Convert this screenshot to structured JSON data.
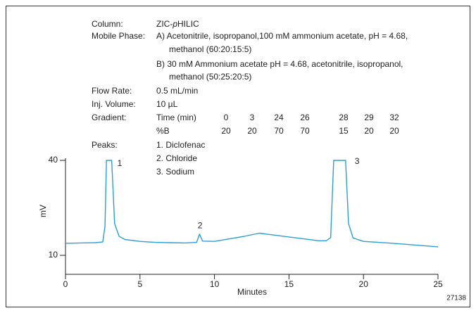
{
  "info": {
    "column": {
      "label": "Column:",
      "value_parts": [
        "ZIC-",
        "p",
        "HILIC"
      ]
    },
    "mobile_phase": {
      "label": "Mobile Phase:",
      "lines": [
        "A) Acetonitrile, isopropanol,100 mM ammonium acetate, pH = 4.68,",
        "methanol (60:20:15:5)",
        "B) 30 mM Ammonium acetate pH = 4.68, acetonitrile, isopropanol,",
        "methanol (50:25:20:5)"
      ]
    },
    "flow_rate": {
      "label": "Flow Rate:",
      "value": "0.5 mL/min"
    },
    "inj_volume": {
      "label": "Inj. Volume:",
      "value": "10 µL"
    },
    "gradient": {
      "label": "Gradient:",
      "time_label": "Time (min)",
      "times": [
        0,
        3,
        24,
        26,
        28,
        29,
        32
      ],
      "b_label": "%B",
      "b": [
        20,
        20,
        70,
        70,
        15,
        20,
        20
      ]
    },
    "peaks": {
      "label": "Peaks:",
      "items": [
        "1. Diclofenac",
        "2. Chloride",
        "3. Sodium"
      ]
    },
    "figure_id": "27138"
  },
  "chart_data": {
    "type": "line",
    "x_label": "Minutes",
    "y_label": "mV",
    "x": [
      0,
      1,
      2,
      2.5,
      2.65,
      2.75,
      3.1,
      3.3,
      3.6,
      4,
      5,
      6,
      7,
      8,
      8.8,
      9.0,
      9.2,
      10,
      11,
      12,
      13,
      14,
      15,
      16,
      17,
      17.5,
      17.8,
      18.0,
      18.8,
      19.0,
      19.3,
      20,
      22,
      25
    ],
    "series": [
      {
        "color": "#2b9fd9",
        "values": [
          13.8,
          13.9,
          14.0,
          14.2,
          19.1,
          40,
          40,
          20,
          16,
          15,
          14.4,
          14.1,
          14.0,
          13.9,
          14.1,
          16.7,
          14.5,
          14.4,
          15.2,
          16.0,
          17.0,
          16.4,
          15.8,
          15.2,
          14.6,
          14.6,
          15.6,
          40,
          40,
          20,
          15.5,
          14.4,
          13.8,
          12.7
        ]
      }
    ],
    "annotations": [
      {
        "text": "1",
        "x": 3.64,
        "y": 38.9
      },
      {
        "text": "2",
        "x": 9.03,
        "y": 19.3
      },
      {
        "text": "3",
        "x": 19.57,
        "y": 39.6
      }
    ],
    "xlim": [
      0,
      25
    ],
    "xticks": [
      0,
      5,
      10,
      15,
      20,
      25
    ],
    "ylim": [
      4,
      40
    ],
    "yticks": [
      10,
      40
    ]
  }
}
